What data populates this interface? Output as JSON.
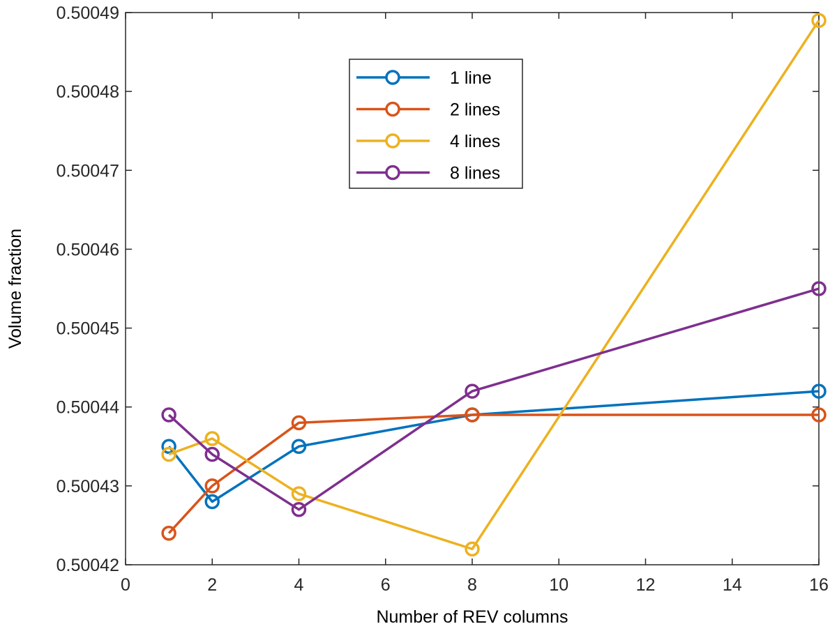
{
  "chart_data": {
    "type": "line",
    "title": "",
    "xlabel": "Number of REV columns",
    "ylabel": "Volume fraction",
    "x": [
      1,
      2,
      4,
      8,
      16
    ],
    "xlim": [
      0,
      16
    ],
    "ylim": [
      0.50042,
      0.50049
    ],
    "xticks": [
      "0",
      "2",
      "4",
      "6",
      "8",
      "10",
      "12",
      "14",
      "16"
    ],
    "yticks": [
      "0.50042",
      "0.50043",
      "0.50044",
      "0.50045",
      "0.50046",
      "0.50047",
      "0.50048",
      "0.50049"
    ],
    "legend_position": "top-center",
    "grid": false,
    "series": [
      {
        "name": "1 line",
        "color": "#0072BD",
        "values": [
          0.500435,
          0.500428,
          0.500435,
          0.500439,
          0.500442
        ]
      },
      {
        "name": "2 lines",
        "color": "#D95319",
        "values": [
          0.500424,
          0.50043,
          0.500438,
          0.500439,
          0.500439
        ]
      },
      {
        "name": "4 lines",
        "color": "#EDB120",
        "values": [
          0.500434,
          0.500436,
          0.500429,
          0.500422,
          0.500489
        ]
      },
      {
        "name": "8 lines",
        "color": "#7E2F8E",
        "values": [
          0.500439,
          0.500434,
          0.500427,
          0.500442,
          0.500455
        ]
      }
    ]
  }
}
